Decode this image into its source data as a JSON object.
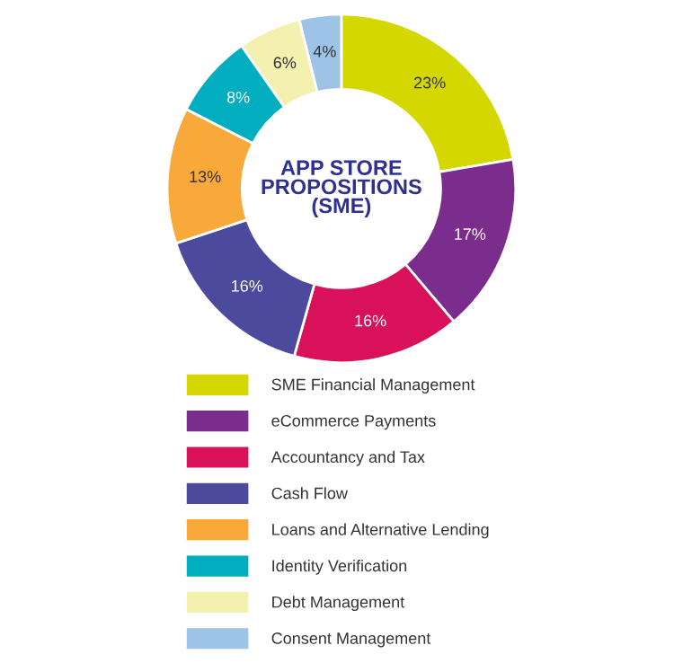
{
  "chart_data": {
    "type": "donut",
    "title": "APP STORE\nPROPOSITIONS\n(SME)",
    "categories": [
      "SME Financial Management",
      "eCommerce Payments",
      "Accountancy and Tax",
      "Cash Flow",
      "Loans and Alternative Lending",
      "Identity Verification",
      "Debt Management",
      "Consent Management"
    ],
    "values": [
      23,
      17,
      16,
      16,
      13,
      8,
      6,
      4
    ],
    "value_labels": [
      "23%",
      "17%",
      "16%",
      "16%",
      "13%",
      "8%",
      "6%",
      "4%"
    ],
    "colors": [
      "#d4d800",
      "#7b2d8e",
      "#d9115a",
      "#4b4a9c",
      "#f9a93a",
      "#00aec0",
      "#f3f0b0",
      "#9dc3e6"
    ],
    "legend": "bottom"
  }
}
